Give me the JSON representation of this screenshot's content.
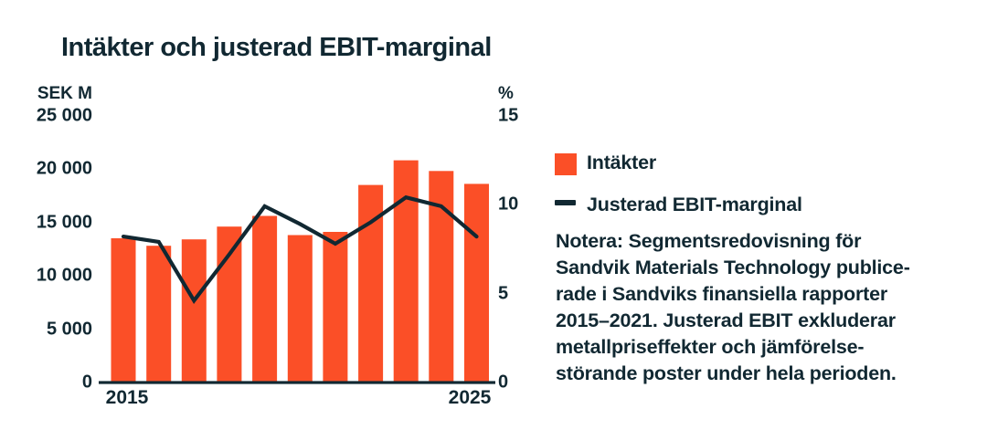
{
  "title": "Intäkter och justerad EBIT-marginal",
  "colors": {
    "bar_orange": "#fb4f27",
    "ink_navy": "#112832",
    "background": "#ffffff"
  },
  "legend": {
    "items": [
      {
        "label": "Intäkter",
        "swatch": "orange-square"
      },
      {
        "label": "Justerad EBIT-marginal",
        "swatch": "navy-line-dash"
      }
    ]
  },
  "note": {
    "lines": [
      "Notera: Segmentsredovisning för",
      "Sandvik Materials Technology publice-",
      "rade i Sandviks finansiella rapporter",
      "2015–2021. Justerad EBIT exkluderar",
      "metallpriseffekter och jämförelse-",
      "störande poster under hela perioden."
    ]
  },
  "chart_data": {
    "type": "combo-bar-line-dual-axis",
    "categories": [
      2015,
      2016,
      2017,
      2018,
      2019,
      2020,
      2021,
      2022,
      2023,
      2024,
      2025
    ],
    "series": [
      {
        "name": "Intäkter",
        "type": "bar",
        "axis": "left",
        "unit": "SEK M",
        "values": [
          13500,
          12800,
          13400,
          14600,
          15600,
          13800,
          14100,
          18500,
          20800,
          19800,
          18600
        ]
      },
      {
        "name": "Justerad EBIT-marginal",
        "type": "line",
        "axis": "right",
        "unit": "%",
        "values": [
          8.2,
          7.9,
          4.6,
          7.2,
          9.9,
          8.9,
          7.8,
          9.0,
          10.4,
          9.9,
          8.2
        ]
      }
    ],
    "left_axis": {
      "label": "SEK M",
      "min": 0,
      "max": 25000,
      "tick_step": 5000,
      "tick_values": [
        25000,
        20000,
        15000,
        10000,
        5000,
        0
      ],
      "tick_labels": [
        "25 000",
        "20 000",
        "15 000",
        "10 000",
        "5 000",
        "0"
      ]
    },
    "right_axis": {
      "label": "%",
      "min": 0,
      "max": 15,
      "tick_step": 5,
      "tick_values": [
        15,
        10,
        5,
        0
      ],
      "tick_labels": [
        "15",
        "10",
        "5",
        "0"
      ]
    },
    "x_axis": {
      "visible_tick_labels": [
        "2015",
        "2025"
      ]
    },
    "grid": false,
    "legend_position": "right"
  }
}
